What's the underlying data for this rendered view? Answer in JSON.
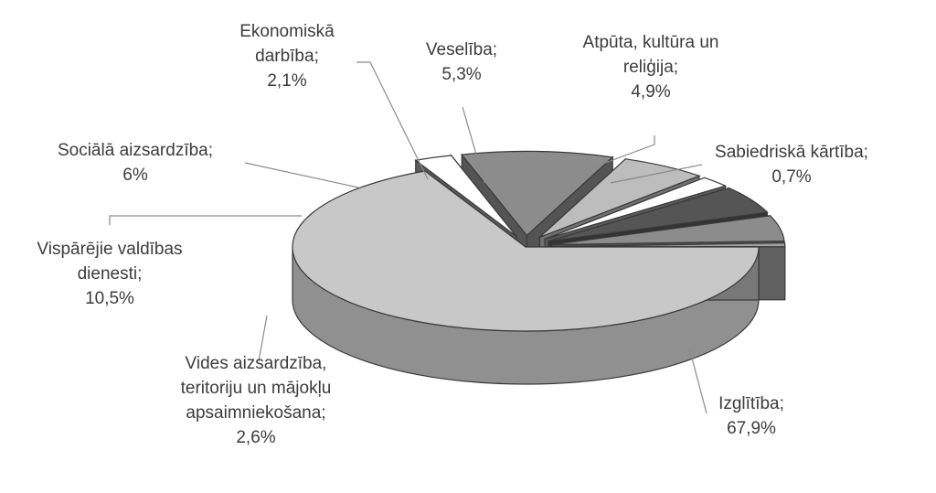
{
  "chart_data": {
    "type": "pie",
    "variant": "3d-exploded",
    "unit": "%",
    "slices": [
      {
        "name": "Izglītība",
        "value": 67.9,
        "label": "67,9%",
        "color": "#c8c8c8"
      },
      {
        "name": "Vides aizsardzība, teritoriju un mājokļu apsaimniekošana",
        "value": 2.6,
        "label": "2,6%",
        "color": "#ffffff"
      },
      {
        "name": "Vispārējie valdības dienesti",
        "value": 10.5,
        "label": "10,5%",
        "color": "#8c8c8c"
      },
      {
        "name": "Sociālā aizsardzība",
        "value": 6,
        "label": "6%",
        "color": "#bdbdbd"
      },
      {
        "name": "Ekonomiskā darbība",
        "value": 2.1,
        "label": "2,1%",
        "color": "#ffffff"
      },
      {
        "name": "Veselība",
        "value": 5.3,
        "label": "5,3%",
        "color": "#555555"
      },
      {
        "name": "Atpūta, kultūra un reliģija",
        "value": 4.9,
        "label": "4,9%",
        "color": "#8c8c8c"
      },
      {
        "name": "Sabiedriskā kārtība",
        "value": 0.7,
        "label": "0,7%",
        "color": "#a0a0a0"
      }
    ],
    "label_text": [
      {
        "lines": [
          "Izglītība;",
          "67,9%"
        ]
      },
      {
        "lines": [
          "Vides aizsardzība,",
          "teritoriju un mājokļu",
          "apsaimniekošana;",
          "2,6%"
        ]
      },
      {
        "lines": [
          "Vispārējie valdības",
          "dienesti;",
          "10,5%"
        ]
      },
      {
        "lines": [
          "Sociālā aizsardzība;",
          "6%"
        ]
      },
      {
        "lines": [
          "Ekonomiskā",
          "darbība;",
          "2,1%"
        ]
      },
      {
        "lines": [
          "Veselība;",
          "5,3%"
        ]
      },
      {
        "lines": [
          "Atpūta, kultūra un",
          "reliģija;",
          "4,9%"
        ]
      },
      {
        "lines": [
          "Sabiedriskā kārtība;",
          "0,7%"
        ]
      }
    ],
    "legend": "none"
  }
}
